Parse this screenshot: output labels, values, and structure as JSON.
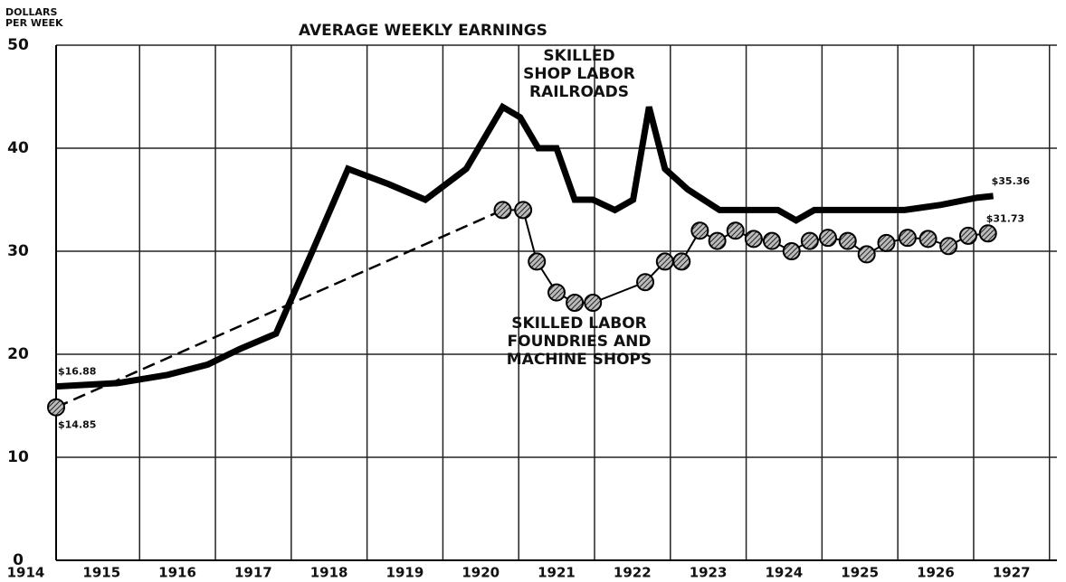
{
  "chart_data": {
    "type": "line",
    "title": "AVERAGE WEEKLY EARNINGS",
    "y_label": "DOLLARS\nPER WEEK",
    "xlim": [
      1914.4,
      1927.6
    ],
    "xticks": [
      1914,
      1915,
      1916,
      1917,
      1918,
      1919,
      1920,
      1921,
      1922,
      1923,
      1924,
      1925,
      1926,
      1927
    ],
    "ylim": [
      0,
      50
    ],
    "yticks": [
      0,
      10,
      20,
      30,
      40,
      50
    ],
    "grid": true,
    "series": [
      {
        "name": "SKILLED\nSHOP LABOR\nRAILROADS",
        "color": "#000000",
        "markers": false,
        "x": [
          1914.4,
          1915.21,
          1915.87,
          1916.4,
          1916.82,
          1917.3,
          1917.78,
          1918.25,
          1918.79,
          1919.27,
          1919.81,
          1920.29,
          1920.52,
          1920.76,
          1921.0,
          1921.24,
          1921.48,
          1921.77,
          1922.01,
          1922.22,
          1922.43,
          1922.73,
          1923.15,
          1923.92,
          1924.16,
          1924.4,
          1925.59,
          1926.07,
          1926.55,
          1926.76
        ],
        "values": [
          16.88,
          17.2,
          18,
          19,
          20.5,
          22,
          30,
          38,
          36.5,
          35,
          38,
          44,
          43,
          40,
          40,
          35,
          35,
          34,
          35,
          44,
          38,
          36,
          34,
          34,
          33,
          34,
          34,
          34.5,
          35.2,
          35.36
        ],
        "value_labels": [
          "$16.88",
          null,
          null,
          null,
          null,
          null,
          null,
          null,
          null,
          null,
          null,
          null,
          null,
          null,
          null,
          null,
          null,
          null,
          null,
          null,
          null,
          null,
          null,
          null,
          null,
          null,
          null,
          null,
          null,
          "$35.36"
        ]
      },
      {
        "name": "SKILLED LABOR\nFOUNDRIES AND\nMACHINE SHOPS",
        "color": "#000000",
        "markers": true,
        "dash_first_segment": true,
        "x": [
          1914.4,
          1920.29,
          1920.56,
          1920.74,
          1921.0,
          1921.24,
          1921.48,
          1922.17,
          1922.43,
          1922.65,
          1922.89,
          1923.12,
          1923.36,
          1923.6,
          1923.84,
          1924.1,
          1924.34,
          1924.58,
          1924.84,
          1925.09,
          1925.35,
          1925.63,
          1925.9,
          1926.17,
          1926.43,
          1926.69
        ],
        "values": [
          14.85,
          34,
          34,
          29,
          26,
          25,
          25,
          27,
          29,
          29,
          32,
          31,
          32,
          31.2,
          31,
          30,
          31,
          31.3,
          31,
          29.7,
          30.8,
          31.3,
          31.2,
          30.5,
          31.5,
          31.73
        ],
        "value_labels": [
          "$14.85",
          null,
          null,
          null,
          null,
          null,
          null,
          null,
          null,
          null,
          null,
          null,
          null,
          null,
          null,
          null,
          null,
          null,
          null,
          null,
          null,
          null,
          null,
          null,
          null,
          "$31.73"
        ]
      }
    ]
  }
}
